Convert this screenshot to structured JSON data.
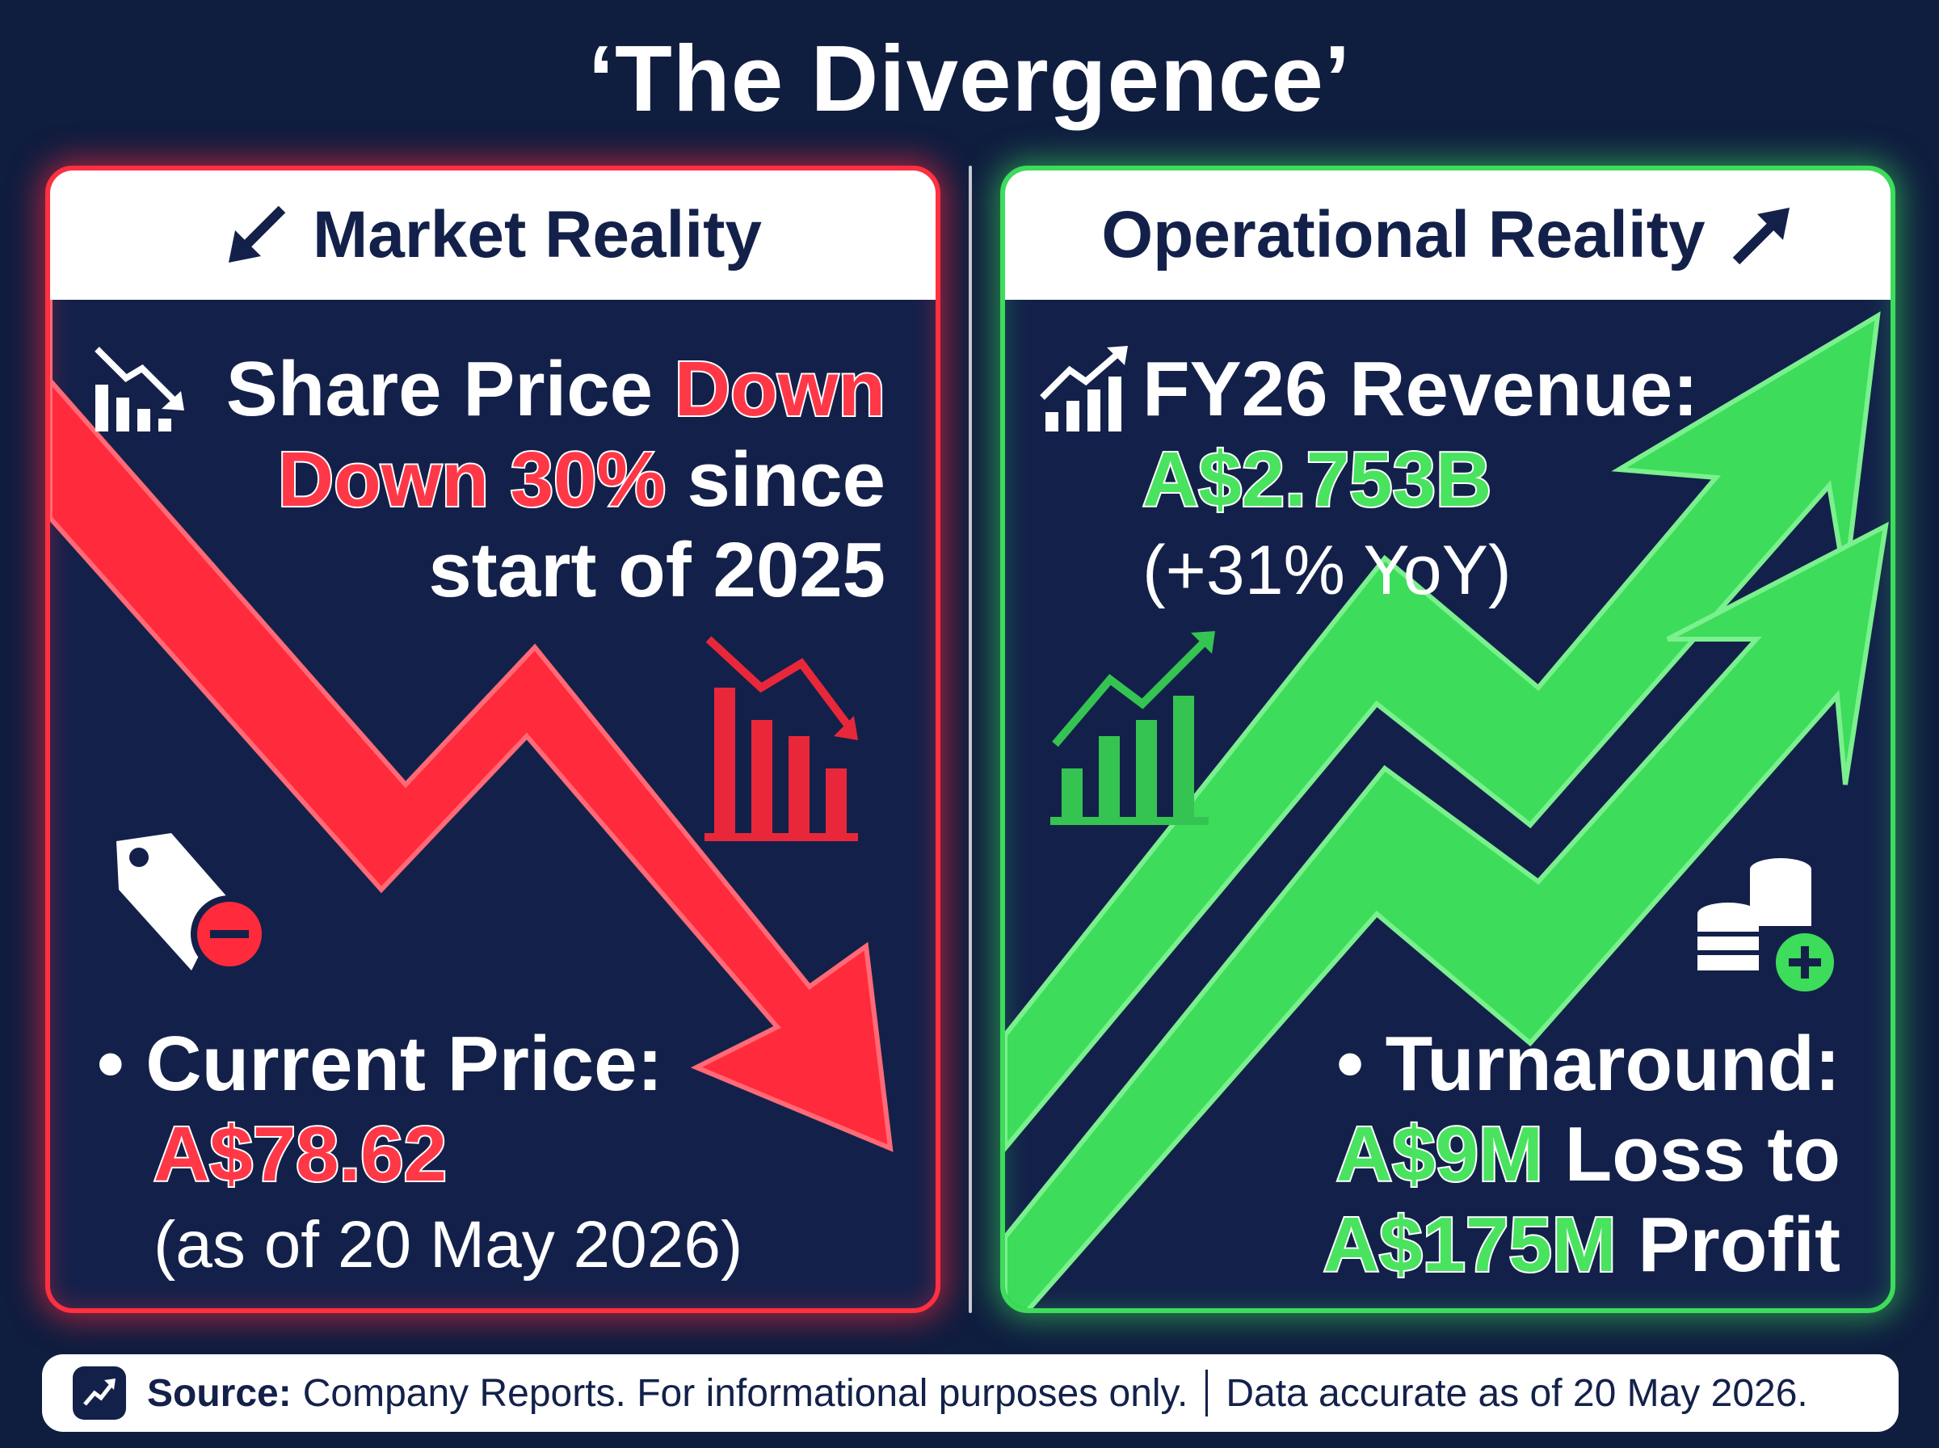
{
  "title": "‘The Divergence’",
  "left": {
    "header": "Market Reality",
    "header_icon": "arrow-down-left-icon",
    "line1_prefix": "Share Price",
    "line1_highlight": "Down",
    "line2_highlight": "Down 30%",
    "line2_suffix": "since",
    "line3": "start of 2025",
    "bullet_label": "Current Price:",
    "price": "A$78.62",
    "price_note": "(as of 20 May 2026)",
    "accent": "#ff3040",
    "icons": [
      "chart-down-icon",
      "falling-arrow-icon",
      "bar-chart-down-icon",
      "price-tag-minus-icon"
    ]
  },
  "right": {
    "header": "Operational Reality",
    "header_icon": "arrow-up-right-icon",
    "line1": "FY26 Revenue:",
    "revenue": "A$2.753B",
    "growth": "(+31% YoY)",
    "bullet_label": "Turnaround:",
    "loss": "A$9M",
    "loss_suffix": "Loss to",
    "profit": "A$175M",
    "profit_suffix": "Profit",
    "accent": "#3ddc5a",
    "icons": [
      "chart-up-icon",
      "rising-arrows-icon",
      "bar-chart-up-icon",
      "coins-plus-icon"
    ]
  },
  "footer": {
    "icon": "trend-up-icon",
    "source_label": "Source:",
    "source_text": "Company Reports. For informational purposes only.",
    "accuracy_text": "Data accurate as of 20 May 2026."
  },
  "colors": {
    "background": "#0f1d3f",
    "panel": "#13214a",
    "red": "#ff3040",
    "green": "#3ddc5a"
  }
}
